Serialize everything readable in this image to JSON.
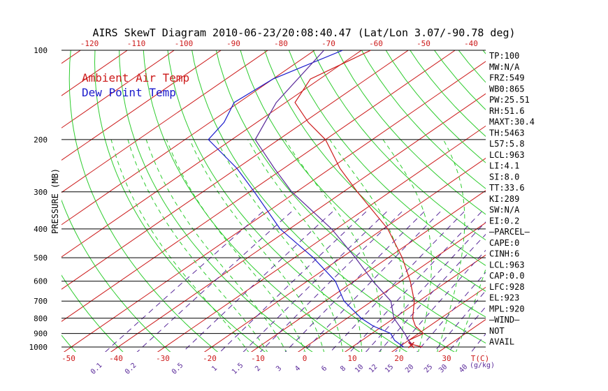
{
  "chart_data": {
    "type": "skew-t",
    "title": "AIRS SkewT Diagram 2010-06-23/20:08:40.47 (Lat/Lon 3.07/-90.78 deg)",
    "ylabel": "PRESSURE (MB)",
    "pressure_ticks": [
      100,
      200,
      300,
      400,
      500,
      600,
      700,
      800,
      900,
      1000
    ],
    "top_temp_ticks": [
      "-120",
      "-110",
      "-100",
      "-90",
      "-80",
      "-70",
      "-60",
      "-50",
      "-40"
    ],
    "bottom_temp_ticks": [
      "-50",
      "-40",
      "-30",
      "-20",
      "-10",
      "0",
      "10",
      "20",
      "30"
    ],
    "bottom_unit_label": "T(C)",
    "mixing_ratio_labels": [
      "0.1",
      "0.2",
      "0.5",
      "1",
      "1.5",
      "2",
      "3",
      "4",
      "6",
      "8",
      "10",
      "12",
      "15",
      "20",
      "25",
      "30",
      "40"
    ],
    "mixing_ratio_unit": "(g/kg)",
    "grid": true,
    "legend": {
      "position": "top-left",
      "ambient": "Ambient Air Temp",
      "dewpoint": "Dew Point Temp",
      "ambient_color": "#cc1a1a",
      "dewpoint_color": "#1a1acc"
    },
    "series": [
      {
        "name": "Ambient Air Temp",
        "color": "#cc1a1a",
        "points": [
          [
            100,
            -78
          ],
          [
            125,
            -82
          ],
          [
            150,
            -78
          ],
          [
            175,
            -69
          ],
          [
            200,
            -60
          ],
          [
            250,
            -48
          ],
          [
            300,
            -37
          ],
          [
            400,
            -19
          ],
          [
            500,
            -7
          ],
          [
            600,
            2
          ],
          [
            700,
            9
          ],
          [
            800,
            14
          ],
          [
            850,
            17
          ],
          [
            900,
            21
          ],
          [
            950,
            20
          ],
          [
            980,
            22
          ],
          [
            1000,
            25
          ]
        ]
      },
      {
        "name": "Dew Point Temp",
        "color": "#1a1acc",
        "points": [
          [
            100,
            -84
          ],
          [
            125,
            -90
          ],
          [
            150,
            -91
          ],
          [
            175,
            -87
          ],
          [
            200,
            -85
          ],
          [
            250,
            -70
          ],
          [
            300,
            -59
          ],
          [
            400,
            -42
          ],
          [
            500,
            -26
          ],
          [
            600,
            -14
          ],
          [
            700,
            -6
          ],
          [
            800,
            3
          ],
          [
            850,
            8
          ],
          [
            900,
            14
          ],
          [
            950,
            17
          ],
          [
            1000,
            21
          ]
        ]
      },
      {
        "name": "",
        "color": "#5a2a9a",
        "points": [
          [
            100,
            -88
          ],
          [
            150,
            -82
          ],
          [
            200,
            -75
          ],
          [
            250,
            -62
          ],
          [
            300,
            -51
          ],
          [
            400,
            -31
          ],
          [
            500,
            -17
          ],
          [
            600,
            -6
          ],
          [
            700,
            4
          ],
          [
            800,
            10
          ],
          [
            900,
            17
          ],
          [
            950,
            20
          ],
          [
            1000,
            23
          ]
        ]
      }
    ],
    "indices": [
      "TP:100",
      "MW:N/A",
      "FRZ:549",
      "WB0:865",
      "PW:25.51",
      "RH:51.6",
      "MAXT:30.4",
      "TH:5463",
      "L57:5.8",
      "LCL:963",
      "LI:4.1",
      "SI:8.0",
      "TT:33.6",
      "KI:289",
      "SW:N/A",
      "EI:0.2",
      "—PARCEL—",
      "CAPE:0",
      "CINH:6",
      "LCL:963",
      "CAP:0.0",
      "LFC:928",
      "EL:923",
      "MPL:920",
      "—WIND—",
      "NOT",
      "AVAIL"
    ]
  }
}
